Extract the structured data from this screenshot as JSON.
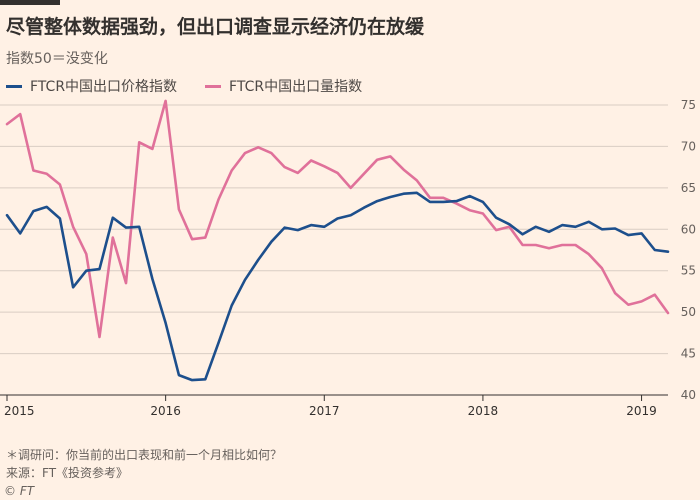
{
  "title": "尽管整体数据强劲，但出口调查显示经济仍在放缓",
  "subtitle": "指数50＝没变化",
  "footnote": "＊调研问：你当前的出口表现和前一个月相比如何？",
  "source": "来源：FT《投资参考》",
  "credit": "© FT",
  "colors": {
    "background": "#fff1e5",
    "series_price": "#1d4f8c",
    "series_volume": "#e0719a",
    "grid": "#d9cdc3",
    "axis": "#33302e"
  },
  "chart_data": {
    "type": "line",
    "title": "尽管整体数据强劲，但出口调查显示经济仍在放缓",
    "subtitle": "指数50＝没变化",
    "ylim": [
      40,
      75
    ],
    "yticks": [
      40,
      45,
      50,
      55,
      60,
      65,
      70,
      75
    ],
    "xlim": [
      "2015-01",
      "2019-03"
    ],
    "xticks": [
      {
        "label": "2015",
        "date": "2015-01"
      },
      {
        "label": "2016",
        "date": "2016-01"
      },
      {
        "label": "2017",
        "date": "2017-01"
      },
      {
        "label": "2018",
        "date": "2018-01"
      },
      {
        "label": "2019",
        "date": "2019-01"
      }
    ],
    "grid": true,
    "legend_position": "top-left",
    "x": [
      "2015-01",
      "2015-02",
      "2015-03",
      "2015-04",
      "2015-05",
      "2015-06",
      "2015-07",
      "2015-08",
      "2015-09",
      "2015-10",
      "2015-11",
      "2015-12",
      "2016-01",
      "2016-02",
      "2016-03",
      "2016-04",
      "2016-05",
      "2016-06",
      "2016-07",
      "2016-08",
      "2016-09",
      "2016-10",
      "2016-11",
      "2016-12",
      "2017-01",
      "2017-02",
      "2017-03",
      "2017-04",
      "2017-05",
      "2017-06",
      "2017-07",
      "2017-08",
      "2017-09",
      "2017-10",
      "2017-11",
      "2017-12",
      "2018-01",
      "2018-02",
      "2018-03",
      "2018-04",
      "2018-05",
      "2018-06",
      "2018-07",
      "2018-08",
      "2018-09",
      "2018-10",
      "2018-11",
      "2018-12",
      "2019-01",
      "2019-02",
      "2019-03"
    ],
    "series": [
      {
        "name": "FTCR中国出口价格指数",
        "color": "#1d4f8c",
        "values": [
          61.7,
          59.5,
          62.2,
          62.7,
          61.3,
          53.0,
          55.0,
          55.2,
          61.4,
          60.2,
          60.3,
          54.0,
          48.7,
          42.4,
          41.8,
          41.9,
          46.3,
          50.8,
          53.9,
          56.3,
          58.5,
          60.2,
          59.9,
          60.5,
          60.3,
          61.3,
          61.7,
          62.6,
          63.4,
          63.9,
          64.3,
          64.4,
          63.3,
          63.3,
          63.4,
          64.0,
          63.3,
          61.4,
          60.6,
          59.4,
          60.3,
          59.7,
          60.5,
          60.3,
          60.9,
          60.0,
          60.1,
          59.3,
          59.5,
          57.5,
          57.3
        ]
      },
      {
        "name": "FTCR中国出口量指数",
        "color": "#e0719a",
        "values": [
          72.7,
          73.9,
          67.1,
          66.7,
          65.4,
          60.3,
          57.0,
          47.0,
          59.0,
          53.5,
          70.5,
          69.7,
          75.5,
          62.4,
          58.8,
          59.0,
          63.6,
          67.1,
          69.2,
          69.9,
          69.2,
          67.5,
          66.8,
          68.3,
          67.6,
          66.8,
          65.0,
          66.7,
          68.4,
          68.8,
          67.2,
          65.9,
          63.8,
          63.8,
          63.1,
          62.3,
          61.9,
          59.9,
          60.3,
          58.1,
          58.1,
          57.7,
          58.1,
          58.1,
          57.0,
          55.3,
          52.3,
          50.9,
          51.3,
          52.1,
          49.9
        ]
      }
    ]
  }
}
